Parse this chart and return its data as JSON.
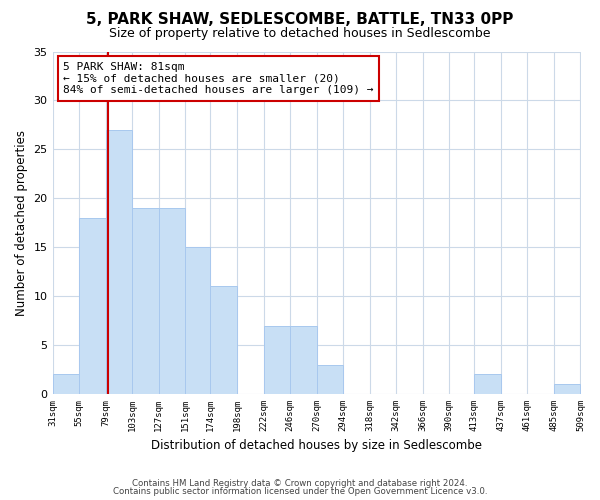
{
  "title": "5, PARK SHAW, SEDLESCOMBE, BATTLE, TN33 0PP",
  "subtitle": "Size of property relative to detached houses in Sedlescombe",
  "xlabel": "Distribution of detached houses by size in Sedlescombe",
  "ylabel": "Number of detached properties",
  "bin_edges": [
    31,
    55,
    79,
    103,
    127,
    151,
    174,
    198,
    222,
    246,
    270,
    294,
    318,
    342,
    366,
    390,
    413,
    437,
    461,
    485,
    509
  ],
  "counts": [
    2,
    18,
    27,
    19,
    19,
    15,
    11,
    0,
    7,
    7,
    3,
    0,
    0,
    0,
    0,
    0,
    2,
    0,
    0,
    1
  ],
  "bar_color": "#c8dff5",
  "bar_edge_color": "#a8c8ee",
  "property_line_x": 81,
  "property_line_color": "#cc0000",
  "annotation_text": "5 PARK SHAW: 81sqm\n← 15% of detached houses are smaller (20)\n84% of semi-detached houses are larger (109) →",
  "annotation_box_color": "#ffffff",
  "annotation_box_edge_color": "#cc0000",
  "ylim": [
    0,
    35
  ],
  "yticks": [
    0,
    5,
    10,
    15,
    20,
    25,
    30,
    35
  ],
  "tick_labels": [
    "31sqm",
    "55sqm",
    "79sqm",
    "103sqm",
    "127sqm",
    "151sqm",
    "174sqm",
    "198sqm",
    "222sqm",
    "246sqm",
    "270sqm",
    "294sqm",
    "318sqm",
    "342sqm",
    "366sqm",
    "390sqm",
    "413sqm",
    "437sqm",
    "461sqm",
    "485sqm",
    "509sqm"
  ],
  "footnote1": "Contains HM Land Registry data © Crown copyright and database right 2024.",
  "footnote2": "Contains public sector information licensed under the Open Government Licence v3.0.",
  "bg_color": "#ffffff",
  "plot_bg_color": "#ffffff",
  "grid_color": "#ccd9e8",
  "title_fontsize": 11,
  "subtitle_fontsize": 9,
  "annotation_fontsize": 8
}
